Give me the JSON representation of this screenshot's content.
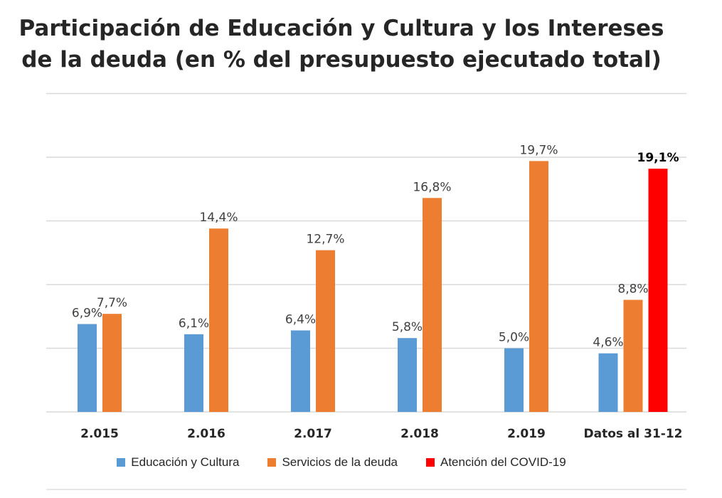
{
  "chart_data": {
    "type": "bar",
    "title_lines": [
      "Participación de Educación y Cultura y los Intereses",
      "de la deuda  (en % del presupuesto ejecutado total)"
    ],
    "categories": [
      "2.015",
      "2.016",
      "2.017",
      "2.018",
      "2.019",
      "Datos al 31-12"
    ],
    "ylim": [
      0,
      25
    ],
    "grid": true,
    "legend_position": "bottom",
    "series": [
      {
        "name": "Educación y Cultura",
        "color": "#5b9bd5",
        "values": [
          6.9,
          6.1,
          6.4,
          5.8,
          5.0,
          4.6
        ],
        "labels": [
          "6,9%",
          "6,1%",
          "6,4%",
          "5,8%",
          "5,0%",
          "4,6%"
        ]
      },
      {
        "name": "Servicios de la deuda",
        "color": "#ed7d31",
        "values": [
          7.7,
          14.4,
          12.7,
          16.8,
          19.7,
          8.8
        ],
        "labels": [
          "7,7%",
          "14,4%",
          "12,7%",
          "16,8%",
          "19,7%",
          "8,8%"
        ]
      },
      {
        "name": "Atención del COVID-19",
        "color": "#ff0000",
        "values": [
          null,
          null,
          null,
          null,
          null,
          19.1
        ],
        "labels": [
          "",
          "",
          "",
          "",
          "",
          "19,1%"
        ]
      }
    ]
  }
}
